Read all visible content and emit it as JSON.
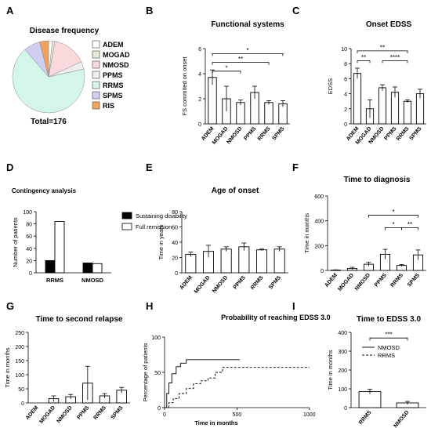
{
  "colors": {
    "ink": "#000000",
    "ADEM": "#ffffff",
    "MOGAD": "#e6ecd9",
    "NMOSD": "#f9d9dc",
    "PPMS": "#eeeeee",
    "RRMS": "#d4f5e9",
    "SPMS": "#cfcdf0",
    "RIS": "#f4a259"
  },
  "chart_data": [
    {
      "panel": "A",
      "type": "pie",
      "title": "Disease frequency",
      "total_label": "Total=176",
      "legend": [
        "ADEM",
        "MOGAD",
        "NMOSD",
        "PPMS",
        "RRMS",
        "SPMS",
        "RIS"
      ],
      "slices": [
        {
          "label": "ADEM",
          "value": 3
        },
        {
          "label": "MOGAD",
          "value": 2
        },
        {
          "label": "NMOSD",
          "value": 27
        },
        {
          "label": "PPMS",
          "value": 6
        },
        {
          "label": "RRMS",
          "value": 118
        },
        {
          "label": "SPMS",
          "value": 13
        },
        {
          "label": "RIS",
          "value": 7
        }
      ]
    },
    {
      "panel": "B",
      "type": "bar",
      "title": "Functional systems",
      "ylabel": "FS commited on onset",
      "ylim": [
        0,
        6
      ],
      "yticks": [
        "0",
        "2",
        "4",
        "6"
      ],
      "categories": [
        "ADEM",
        "MOGAD",
        "NMOSD",
        "PPMS",
        "RRMS",
        "SPMS"
      ],
      "values": [
        3.7,
        2.0,
        1.7,
        2.5,
        1.7,
        1.6
      ],
      "errors": [
        0.6,
        1.0,
        0.2,
        0.5,
        0.15,
        0.25
      ],
      "brackets": [
        {
          "from": 0,
          "to": 5,
          "label": "*",
          "y": 5.6
        },
        {
          "from": 0,
          "to": 4,
          "label": "**",
          "y": 4.9
        },
        {
          "from": 0,
          "to": 2,
          "label": "*",
          "y": 4.2
        }
      ]
    },
    {
      "panel": "C",
      "type": "bar",
      "title": "Onset EDSS",
      "ylabel": "EDSS",
      "ylim": [
        0,
        10
      ],
      "yticks": [
        "0",
        "2",
        "4",
        "6",
        "8",
        "10"
      ],
      "categories": [
        "ADEM",
        "MOGAD",
        "NMOSD",
        "PPMS",
        "RRMS",
        "SPMS"
      ],
      "values": [
        6.7,
        2.0,
        4.8,
        4.2,
        3.0,
        4.0
      ],
      "errors": [
        0.7,
        1.2,
        0.4,
        0.7,
        0.2,
        0.6
      ],
      "brackets": [
        {
          "from": 0,
          "to": 4,
          "label": "**",
          "y": 9.7
        },
        {
          "from": 0,
          "to": 1,
          "label": "**",
          "y": 8.4
        },
        {
          "from": 2,
          "to": 4,
          "label": "****",
          "y": 8.4
        }
      ]
    },
    {
      "panel": "D",
      "type": "bar",
      "title": "Contingency analysis",
      "ylabel": "Number of patients",
      "ylim": [
        0,
        100
      ],
      "yticks": [
        "0",
        "20",
        "40",
        "60",
        "80",
        "100"
      ],
      "categories": [
        "RRMS",
        "NMOSD"
      ],
      "series": [
        {
          "name": "Sustaining disability",
          "values": [
            20,
            16
          ]
        },
        {
          "name": "Full remission",
          "values": [
            84,
            15
          ]
        }
      ]
    },
    {
      "panel": "E",
      "type": "bar",
      "title": "Age of onset",
      "ylabel": "Time in years",
      "ylim": [
        0,
        80
      ],
      "yticks": [
        "0",
        "20",
        "40",
        "60",
        "80"
      ],
      "categories": [
        "ADEM",
        "MOGAD",
        "NMOSD",
        "PPMS",
        "RRMS",
        "SPMS"
      ],
      "values": [
        24,
        28,
        31,
        34,
        30,
        31
      ],
      "errors": [
        3,
        8,
        3,
        5,
        1,
        3
      ],
      "brackets": []
    },
    {
      "panel": "F",
      "type": "bar",
      "title": "Time to diagnosis",
      "ylabel": "Time in months",
      "ylim": [
        0,
        600
      ],
      "yticks": [
        "0",
        "200",
        "400",
        "600"
      ],
      "categories": [
        "ADEM",
        "MOGAD",
        "NMOSD",
        "PPMS",
        "RRMS",
        "SPMS"
      ],
      "values": [
        3,
        15,
        50,
        130,
        40,
        125
      ],
      "errors": [
        2,
        10,
        15,
        40,
        8,
        40
      ],
      "brackets": [
        {
          "from": 2,
          "to": 5,
          "label": "*",
          "y": 445
        },
        {
          "from": 3,
          "to": 4,
          "label": "*",
          "y": 345
        },
        {
          "from": 4,
          "to": 5,
          "label": "**",
          "y": 345
        }
      ]
    },
    {
      "panel": "G",
      "type": "bar",
      "title": "Time to second relapse",
      "ylabel": "Time in months",
      "ylim": [
        0,
        250
      ],
      "yticks": [
        "0",
        "50",
        "100",
        "150",
        "200",
        "250"
      ],
      "categories": [
        "ADEM",
        "MOGAD",
        "NMOSD",
        "PPMS",
        "RRMS",
        "SPMS"
      ],
      "values": [
        0,
        15,
        22,
        70,
        25,
        45
      ],
      "errors": [
        0,
        10,
        8,
        60,
        8,
        10
      ],
      "brackets": []
    },
    {
      "panel": "H",
      "type": "line",
      "title": "Probability of reaching EDSS 3.0",
      "ylabel": "Percentage of patients",
      "xlabel": "Time in months",
      "xlim": [
        0,
        1000
      ],
      "ylim": [
        0,
        100
      ],
      "xticks": [
        "0",
        "500",
        "1000"
      ],
      "yticks": [
        "0",
        "50",
        "100"
      ],
      "series": [
        {
          "name": "NMOSD",
          "x": [
            0,
            15,
            30,
            50,
            80,
            110,
            150,
            520
          ],
          "y": [
            0,
            20,
            35,
            48,
            58,
            63,
            68,
            68
          ]
        },
        {
          "name": "RRMS",
          "x": [
            0,
            30,
            60,
            100,
            150,
            200,
            250,
            300,
            350,
            400,
            1000
          ],
          "y": [
            0,
            7,
            13,
            20,
            27,
            34,
            38,
            42,
            50,
            57,
            57
          ]
        }
      ]
    },
    {
      "panel": "I",
      "type": "bar",
      "title": "Time to EDSS 3.0",
      "ylabel": "Time in months",
      "ylim": [
        0,
        400
      ],
      "yticks": [
        "0",
        "100",
        "200",
        "300",
        "400"
      ],
      "categories": [
        "RRMS",
        "NMOSD"
      ],
      "values": [
        85,
        25
      ],
      "errors": [
        12,
        8
      ],
      "brackets": [
        {
          "from": 0,
          "to": 1,
          "label": "***",
          "y": 370
        }
      ]
    }
  ]
}
